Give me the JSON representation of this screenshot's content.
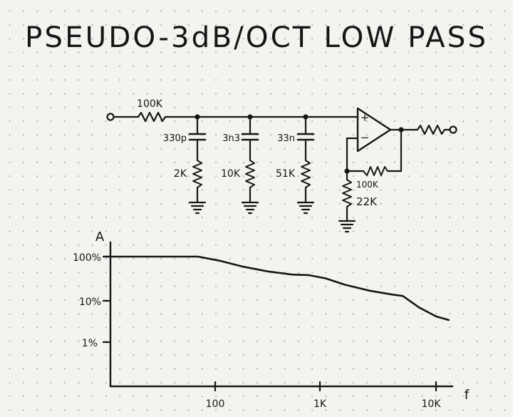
{
  "title": "PSEUDO-3dB/OCT LOW PASS",
  "schematic": {
    "input_resistor": "100K",
    "capacitors": [
      "330p",
      "3n3",
      "33n"
    ],
    "shunt_resistors": [
      "2K",
      "10K",
      "51K"
    ],
    "opamp_plus": "+",
    "opamp_minus": "−",
    "feedback_resistor": "100K",
    "ground_resistor": "22K"
  },
  "graph": {
    "y_axis_label": "A",
    "x_axis_label": "f",
    "y_ticks": [
      "100%",
      "10%",
      "1%"
    ],
    "x_ticks": [
      "100",
      "1K",
      "10K"
    ]
  },
  "chart_data": {
    "type": "line",
    "title": "PSEUDO-3dB/OCT LOW PASS",
    "xlabel": "f",
    "ylabel": "A",
    "x_scale": "log",
    "y_scale": "log",
    "x_ticks": [
      "100",
      "1K",
      "10K"
    ],
    "y_ticks": [
      "100%",
      "10%",
      "1%"
    ],
    "series": [
      {
        "x": [
          10,
          40,
          70,
          110,
          180,
          300,
          500,
          700,
          1000,
          1500,
          2500,
          4000,
          5000,
          7000,
          10000,
          13000
        ],
        "y": [
          100,
          100,
          100,
          80,
          58,
          45,
          38,
          37,
          31,
          22,
          16,
          13,
          12,
          6.5,
          4,
          3.3
        ]
      }
    ]
  }
}
